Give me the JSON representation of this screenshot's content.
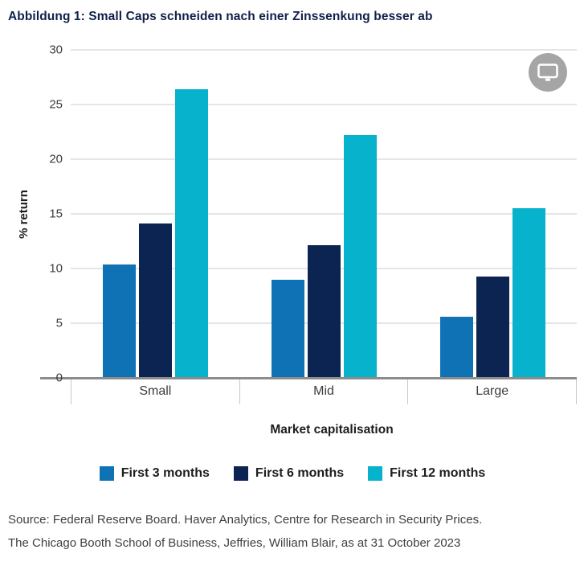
{
  "title": "Abbildung 1: Small Caps schneiden nach einer Zinssenkung besser ab",
  "chart_data": {
    "type": "bar",
    "categories": [
      "Small",
      "Mid",
      "Large"
    ],
    "series": [
      {
        "name": "First 3 months",
        "color": "#0f72b4",
        "values": [
          10.4,
          9.0,
          5.6
        ]
      },
      {
        "name": "First 6 months",
        "color": "#0c2451",
        "values": [
          14.1,
          12.1,
          9.3
        ]
      },
      {
        "name": "First 12 months",
        "color": "#06b2cc",
        "values": [
          26.4,
          22.2,
          15.5
        ]
      }
    ],
    "xlabel": "Market capitalisation",
    "ylabel": "% return",
    "ylim": [
      0,
      30
    ],
    "yticks": [
      0,
      5,
      10,
      15,
      20,
      25,
      30
    ],
    "grid": "horizontal",
    "legend_position": "bottom"
  },
  "widget": {
    "icon": "monitor-icon"
  },
  "source": {
    "line1": "Source: Federal Reserve Board. Haver Analytics, Centre for Research in Security Prices.",
    "line2": "The Chicago Booth School of Business, Jeffries, William Blair, as at 31 October 2023"
  }
}
